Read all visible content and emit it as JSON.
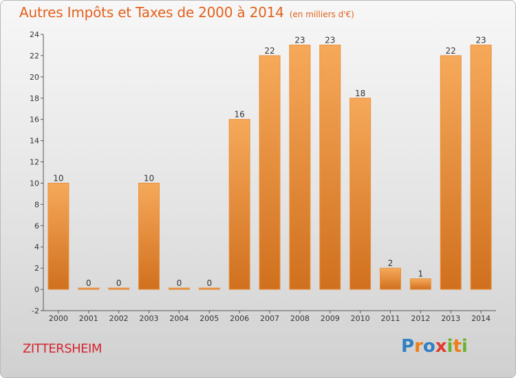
{
  "title": "Autres Impôts et Taxes de 2000 à 2014",
  "subtitle": "(en milliers d'€)",
  "commune": "ZITTERSHEIM",
  "logo": {
    "text": "Proxiti",
    "letters": [
      {
        "ch": "P",
        "color": "#2f7fc4"
      },
      {
        "ch": "r",
        "color": "#ef7d1a"
      },
      {
        "ch": "o",
        "color": "#2f7fc4"
      },
      {
        "ch": "x",
        "color": "#e23b2a"
      },
      {
        "ch": "i",
        "color": "#67b32e"
      },
      {
        "ch": "t",
        "color": "#ef7d1a"
      },
      {
        "ch": "i",
        "color": "#67b32e"
      }
    ]
  },
  "colors": {
    "title": "#e2611c",
    "commune": "#d4252f",
    "bar_top": "#f6a95a",
    "bar_bottom": "#d0701e",
    "bar_edge": "#e8923e"
  },
  "chart_data": {
    "type": "bar",
    "categories": [
      "2000",
      "2001",
      "2002",
      "2003",
      "2004",
      "2005",
      "2006",
      "2007",
      "2008",
      "2009",
      "2010",
      "2011",
      "2012",
      "2013",
      "2014"
    ],
    "values": [
      10,
      0,
      0,
      10,
      0,
      0,
      16,
      22,
      23,
      23,
      18,
      2,
      1,
      22,
      23
    ],
    "data_labels": [
      "10",
      "0",
      "0",
      "10",
      "0",
      "0",
      "16",
      "22",
      "23",
      "23",
      "18",
      "2",
      "1",
      "22",
      "23"
    ],
    "yticks": [
      "-2",
      "0",
      "2",
      "4",
      "6",
      "8",
      "10",
      "12",
      "14",
      "16",
      "18",
      "20",
      "22",
      "24"
    ],
    "ylim": [
      -2,
      24
    ],
    "grid": false,
    "legend": "none"
  }
}
